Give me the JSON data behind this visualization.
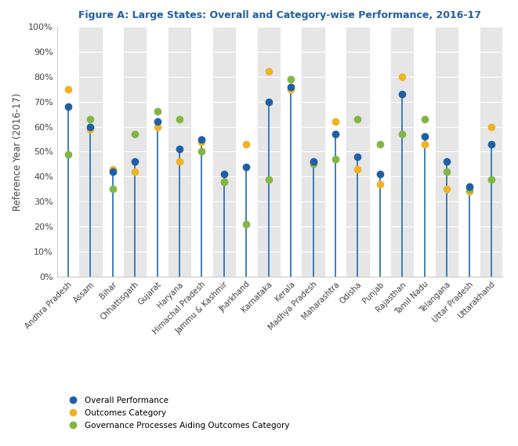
{
  "title": "Figure A: Large States: Overall and Category-wise Performance, 2016-17",
  "ylabel": "Reference Year (2016-17)",
  "states": [
    "Andhra Pradesh",
    "Assam",
    "Bihar",
    "Chhattisgarh",
    "Gujarat",
    "Haryana",
    "Himachal Pradesh",
    "Jammu & Kashmir",
    "Jharkhand",
    "Karnataka",
    "Kerala",
    "Madhya Pradesh",
    "Maharashtra",
    "Odisha",
    "Punjab",
    "Rajasthan",
    "Tamil Nadu",
    "Telangana",
    "Uttar Pradesh",
    "Uttarakhand"
  ],
  "overall": [
    68,
    60,
    42,
    46,
    62,
    51,
    55,
    41,
    44,
    70,
    76,
    46,
    57,
    48,
    41,
    73,
    56,
    46,
    36,
    53
  ],
  "outcomes": [
    75,
    59,
    43,
    42,
    60,
    46,
    54,
    38,
    53,
    82,
    75,
    46,
    62,
    43,
    37,
    80,
    53,
    35,
    34,
    60
  ],
  "governance": [
    49,
    63,
    35,
    57,
    66,
    63,
    50,
    38,
    21,
    39,
    79,
    45,
    47,
    63,
    53,
    57,
    63,
    42,
    35,
    39
  ],
  "overall_color": "#1f5fa6",
  "outcomes_color": "#f0b323",
  "governance_color": "#82b642",
  "line_color": "#2e75b6",
  "bg_color": "#ffffff",
  "stripe_color": "#e6e6e6",
  "title_color": "#1f5fa6",
  "ylim": [
    0,
    100
  ],
  "yticks": [
    0,
    10,
    20,
    30,
    40,
    50,
    60,
    70,
    80,
    90,
    100
  ],
  "ytick_labels": [
    "0%",
    "10%",
    "20%",
    "30%",
    "40%",
    "50%",
    "60%",
    "70%",
    "80%",
    "90%",
    "100%"
  ]
}
